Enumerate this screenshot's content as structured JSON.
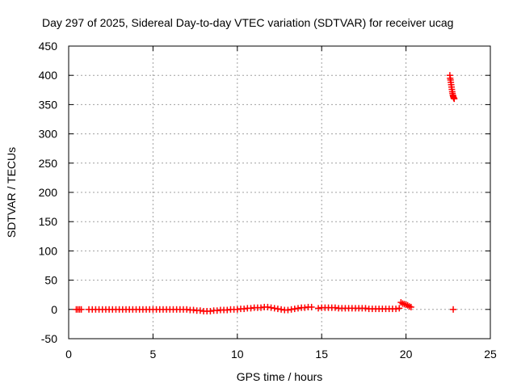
{
  "chart_data": {
    "type": "scatter",
    "title": "Day 297 of 2025, Sidereal Day-to-day VTEC variation (SDTVAR) for receiver ucag",
    "xlabel": "GPS time / hours",
    "ylabel": "SDTVAR / TECUs",
    "xlim": [
      0,
      25
    ],
    "ylim": [
      -50,
      450
    ],
    "x_ticks": [
      0,
      5,
      10,
      15,
      20,
      25
    ],
    "y_ticks": [
      -50,
      0,
      50,
      100,
      150,
      200,
      250,
      300,
      350,
      400,
      450
    ],
    "grid": true,
    "marker": "plus",
    "color": "#ff0000",
    "series": [
      {
        "name": "SDTVAR",
        "x": [
          0.45,
          0.55,
          0.65,
          0.75,
          1.2,
          1.4,
          1.6,
          1.8,
          2.0,
          2.2,
          2.4,
          2.6,
          2.8,
          3.0,
          3.2,
          3.4,
          3.6,
          3.8,
          4.0,
          4.2,
          4.4,
          4.6,
          4.8,
          5.0,
          5.2,
          5.4,
          5.6,
          5.8,
          6.0,
          6.2,
          6.4,
          6.6,
          6.8,
          7.0,
          7.2,
          7.4,
          7.6,
          7.8,
          8.0,
          8.2,
          8.4,
          8.6,
          8.8,
          9.0,
          9.2,
          9.4,
          9.6,
          9.8,
          10.0,
          10.2,
          10.4,
          10.6,
          10.8,
          11.0,
          11.2,
          11.4,
          11.6,
          11.8,
          12.0,
          12.2,
          12.4,
          12.6,
          12.8,
          13.0,
          13.2,
          13.4,
          13.6,
          13.8,
          14.0,
          14.2,
          14.4,
          14.8,
          15.0,
          15.2,
          15.4,
          15.6,
          15.8,
          16.0,
          16.2,
          16.4,
          16.6,
          16.8,
          17.0,
          17.2,
          17.4,
          17.6,
          17.8,
          18.0,
          18.2,
          18.4,
          18.6,
          18.8,
          19.0,
          19.2,
          19.4,
          19.6,
          19.7,
          19.8,
          19.9,
          20.0,
          20.1,
          20.2,
          20.3,
          22.6,
          22.62,
          22.64,
          22.66,
          22.68,
          22.7,
          22.72,
          22.74,
          22.76,
          22.78,
          22.8,
          22.82,
          22.84,
          22.86,
          22.8
        ],
        "y": [
          0,
          0,
          0,
          0,
          0,
          0,
          0,
          0,
          0,
          0,
          0,
          0,
          0,
          0,
          0,
          0,
          0,
          0,
          0,
          0,
          0,
          0,
          0,
          0,
          0,
          0,
          0,
          0,
          0,
          0,
          0,
          0,
          0,
          0,
          -1,
          -1,
          -2,
          -2,
          -3,
          -3,
          -3,
          -2,
          -2,
          -1,
          -1,
          -1,
          0,
          0,
          0,
          1,
          1,
          2,
          2,
          3,
          3,
          3,
          4,
          4,
          3,
          2,
          1,
          0,
          -1,
          -1,
          0,
          1,
          2,
          3,
          3,
          4,
          4,
          2,
          3,
          3,
          3,
          3,
          3,
          2,
          2,
          2,
          2,
          2,
          2,
          2,
          2,
          2,
          1,
          1,
          1,
          1,
          1,
          1,
          1,
          1,
          1,
          2,
          12,
          10,
          9,
          8,
          7,
          5,
          4,
          400,
          395,
          392,
          388,
          384,
          380,
          376,
          372,
          369,
          366,
          364,
          362,
          361,
          360,
          0
        ]
      }
    ]
  }
}
